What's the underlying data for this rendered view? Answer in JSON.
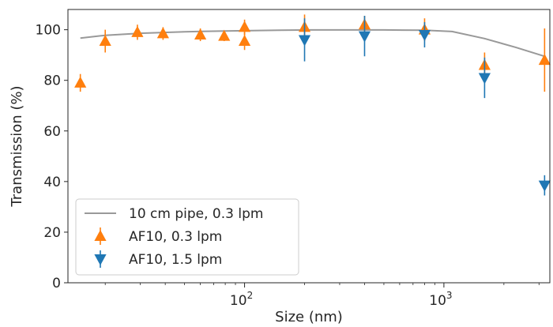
{
  "chart_data": {
    "type": "scatter",
    "title": "",
    "xlabel": "Size (nm)",
    "ylabel": "Transmission (%)",
    "xscale": "log",
    "xlim": [
      13,
      3400
    ],
    "ylim": [
      0,
      108
    ],
    "x_major_ticks": [
      {
        "value": 100,
        "base": "10",
        "exp": "2"
      },
      {
        "value": 1000,
        "base": "10",
        "exp": "3"
      }
    ],
    "y_ticks": [
      0,
      20,
      40,
      60,
      80,
      100
    ],
    "grid": false,
    "legend_position": "lower-left",
    "series": [
      {
        "name": "10 cm pipe, 0.3 lpm",
        "kind": "line",
        "color": "#999999",
        "x": [
          15,
          20,
          30,
          50,
          80,
          100,
          150,
          200,
          300,
          500,
          800,
          1100,
          1600,
          2300,
          3200
        ],
        "y": [
          96.7,
          97.8,
          98.6,
          99.2,
          99.5,
          99.6,
          99.8,
          99.9,
          99.9,
          99.9,
          99.8,
          99.3,
          96.5,
          93.0,
          89.5
        ]
      },
      {
        "name": "AF10, 0.3 lpm",
        "kind": "errorbar",
        "marker": "triangle-up",
        "color": "#ff7f0e",
        "x": [
          15,
          20,
          29,
          39,
          60,
          79,
          100,
          100,
          200,
          400,
          800,
          1600,
          3200
        ],
        "y": [
          79,
          95.5,
          99,
          98.5,
          98,
          97.5,
          101,
          95.5,
          101,
          102,
          100,
          86,
          88
        ],
        "yerr": [
          3.5,
          4.5,
          3,
          2.5,
          2.5,
          2,
          3,
          3.5,
          5,
          3.5,
          4.5,
          5,
          12.5
        ]
      },
      {
        "name": "AF10, 1.5 lpm",
        "kind": "errorbar",
        "marker": "triangle-down",
        "color": "#1f77b4",
        "x": [
          200,
          400,
          800,
          1600,
          3200
        ],
        "y": [
          96,
          97.5,
          98,
          81,
          38.5
        ],
        "yerr": [
          8.5,
          8,
          5,
          8,
          4
        ]
      }
    ]
  }
}
